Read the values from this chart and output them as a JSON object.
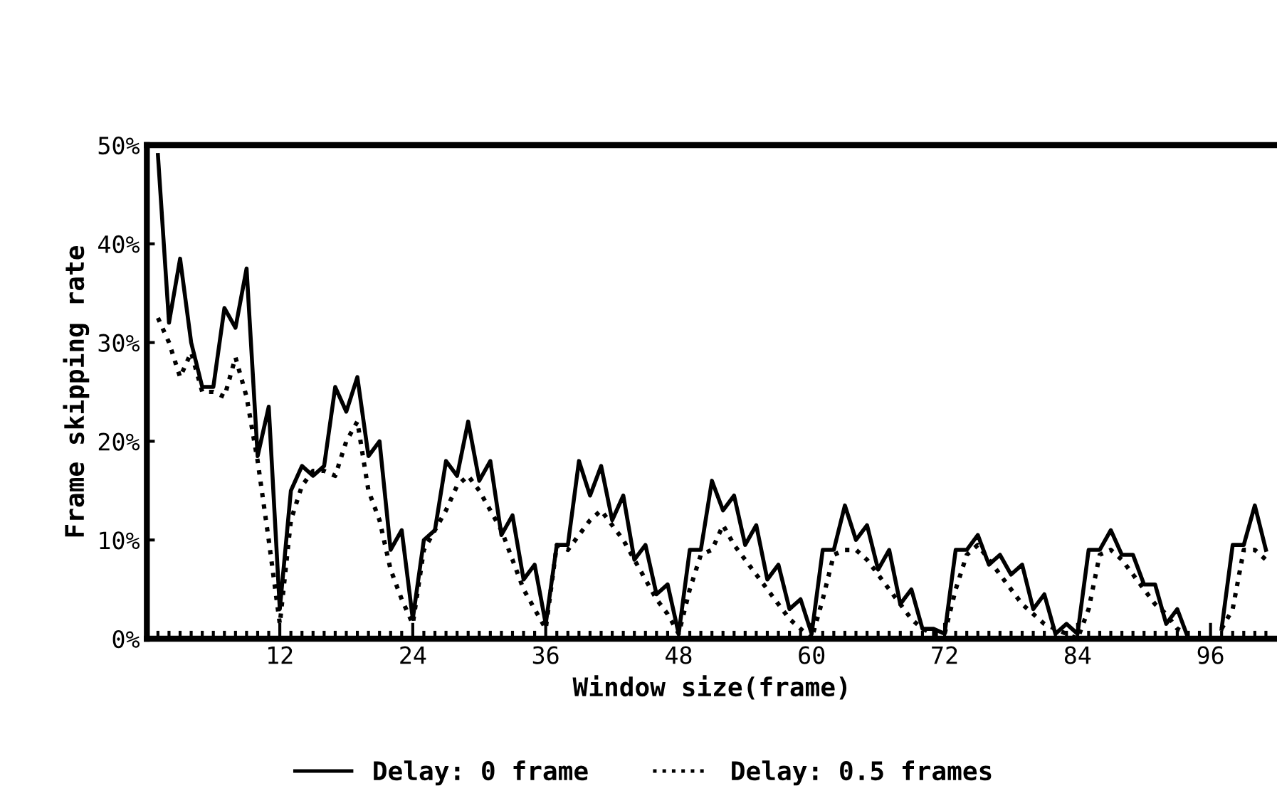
{
  "chart_data": {
    "type": "line",
    "xlabel": "Window size(frame)",
    "ylabel": "Frame skipping rate",
    "x": [
      1,
      2,
      3,
      4,
      5,
      6,
      7,
      8,
      9,
      10,
      11,
      12,
      13,
      14,
      15,
      16,
      17,
      18,
      19,
      20,
      21,
      22,
      23,
      24,
      25,
      26,
      27,
      28,
      29,
      30,
      31,
      32,
      33,
      34,
      35,
      36,
      37,
      38,
      39,
      40,
      41,
      42,
      43,
      44,
      45,
      46,
      47,
      48,
      49,
      50,
      51,
      52,
      53,
      54,
      55,
      56,
      57,
      58,
      59,
      60,
      61,
      62,
      63,
      64,
      65,
      66,
      67,
      68,
      69,
      70,
      71,
      72,
      73,
      74,
      75,
      76,
      77,
      78,
      79,
      80,
      81,
      82,
      83,
      84,
      85,
      86,
      87,
      88,
      89,
      90,
      91,
      92,
      93,
      94,
      95,
      96,
      97,
      98,
      99,
      100,
      101
    ],
    "series": [
      {
        "name": "Delay: 0 frame",
        "color": "#000000",
        "line_style": "solid",
        "values": [
          49,
          32,
          38.5,
          30,
          25.5,
          25.5,
          33.5,
          31.5,
          37.5,
          18.5,
          23.5,
          3,
          15,
          17.5,
          16.5,
          17.5,
          25.5,
          23,
          26.5,
          18.5,
          20,
          9,
          11,
          2,
          10,
          11,
          18,
          16.5,
          22,
          16,
          18,
          10.5,
          12.5,
          6,
          7.5,
          1.5,
          9.5,
          9.5,
          18,
          14.5,
          17.5,
          12,
          14.5,
          8,
          9.5,
          4.5,
          5.5,
          0.5,
          9,
          9,
          16,
          13,
          14.5,
          9.5,
          11.5,
          6,
          7.5,
          3,
          4,
          0.5,
          9,
          9,
          13.5,
          10,
          11.5,
          7,
          9,
          3.5,
          5,
          1,
          1,
          0.5,
          9,
          9,
          10.5,
          7.5,
          8.5,
          6.5,
          7.5,
          3,
          4.5,
          0.5,
          1.5,
          0.5,
          9,
          9,
          11,
          8.5,
          8.5,
          5.5,
          5.5,
          1.5,
          3,
          0,
          null,
          null,
          1,
          9.5,
          9.5,
          13.5,
          9
        ]
      },
      {
        "name": "Delay: 0.5 frames",
        "color": "#000000",
        "line_style": "dotted",
        "values": [
          32.5,
          30,
          26.5,
          29,
          25,
          25,
          24.5,
          28.5,
          24.5,
          18,
          10,
          1.5,
          12,
          15.5,
          17,
          17,
          16.5,
          20,
          22,
          15,
          12,
          7,
          4,
          1.5,
          9,
          11,
          13,
          15.5,
          16.5,
          15,
          13,
          11,
          8,
          5,
          3,
          1,
          9.5,
          9,
          10.5,
          12,
          13,
          11.5,
          10,
          8,
          6,
          4,
          2.5,
          0.5,
          5,
          8.5,
          9,
          11.5,
          9.5,
          8,
          6.5,
          5,
          3.5,
          2,
          1,
          0,
          4,
          8.5,
          9,
          9,
          8,
          6.5,
          5,
          3.5,
          2,
          1,
          0.5,
          0.5,
          5,
          8.5,
          9.5,
          8,
          6.5,
          5,
          3.5,
          2.5,
          1.5,
          1,
          0.5,
          0,
          3,
          8.5,
          9,
          8,
          6.5,
          5,
          3.5,
          2.5,
          1,
          0.5,
          null,
          null,
          1,
          3,
          9,
          9,
          8
        ]
      }
    ],
    "xlim": [
      0,
      102
    ],
    "xticks": [
      {
        "value": 1,
        "label": null
      },
      {
        "value": 2,
        "label": null
      },
      {
        "value": 3,
        "label": null
      },
      {
        "value": 4,
        "label": null
      },
      {
        "value": 5,
        "label": null
      },
      {
        "value": 6,
        "label": null
      },
      {
        "value": 7,
        "label": null
      },
      {
        "value": 8,
        "label": null
      },
      {
        "value": 9,
        "label": null
      },
      {
        "value": 10,
        "label": null
      },
      {
        "value": 11,
        "label": null
      },
      12,
      {
        "value": 13,
        "label": null
      },
      {
        "value": 14,
        "label": null
      },
      {
        "value": 15,
        "label": null
      },
      {
        "value": 16,
        "label": null
      },
      {
        "value": 17,
        "label": null
      },
      {
        "value": 18,
        "label": null
      },
      {
        "value": 19,
        "label": null
      },
      {
        "value": 20,
        "label": null
      },
      {
        "value": 21,
        "label": null
      },
      {
        "value": 22,
        "label": null
      },
      {
        "value": 23,
        "label": null
      },
      24,
      {
        "value": 25,
        "label": null
      },
      {
        "value": 26,
        "label": null
      },
      {
        "value": 27,
        "label": null
      },
      {
        "value": 28,
        "label": null
      },
      {
        "value": 29,
        "label": null
      },
      {
        "value": 30,
        "label": null
      },
      {
        "value": 31,
        "label": null
      },
      {
        "value": 32,
        "label": null
      },
      {
        "value": 33,
        "label": null
      },
      {
        "value": 34,
        "label": null
      },
      {
        "value": 35,
        "label": null
      },
      36,
      {
        "value": 37,
        "label": null
      },
      {
        "value": 38,
        "label": null
      },
      {
        "value": 39,
        "label": null
      },
      {
        "value": 40,
        "label": null
      },
      {
        "value": 41,
        "label": null
      },
      {
        "value": 42,
        "label": null
      },
      {
        "value": 43,
        "label": null
      },
      {
        "value": 44,
        "label": null
      },
      {
        "value": 45,
        "label": null
      },
      {
        "value": 46,
        "label": null
      },
      {
        "value": 47,
        "label": null
      },
      48,
      {
        "value": 49,
        "label": null
      },
      {
        "value": 50,
        "label": null
      },
      {
        "value": 51,
        "label": null
      },
      {
        "value": 52,
        "label": null
      },
      {
        "value": 53,
        "label": null
      },
      {
        "value": 54,
        "label": null
      },
      {
        "value": 55,
        "label": null
      },
      {
        "value": 56,
        "label": null
      },
      {
        "value": 57,
        "label": null
      },
      {
        "value": 58,
        "label": null
      },
      {
        "value": 59,
        "label": null
      },
      60,
      {
        "value": 61,
        "label": null
      },
      {
        "value": 62,
        "label": null
      },
      {
        "value": 63,
        "label": null
      },
      {
        "value": 64,
        "label": null
      },
      {
        "value": 65,
        "label": null
      },
      {
        "value": 66,
        "label": null
      },
      {
        "value": 67,
        "label": null
      },
      {
        "value": 68,
        "label": null
      },
      {
        "value": 69,
        "label": null
      },
      {
        "value": 70,
        "label": null
      },
      {
        "value": 71,
        "label": null
      },
      72,
      {
        "value": 73,
        "label": null
      },
      {
        "value": 74,
        "label": null
      },
      {
        "value": 75,
        "label": null
      },
      {
        "value": 76,
        "label": null
      },
      {
        "value": 77,
        "label": null
      },
      {
        "value": 78,
        "label": null
      },
      {
        "value": 79,
        "label": null
      },
      {
        "value": 80,
        "label": null
      },
      {
        "value": 81,
        "label": null
      },
      {
        "value": 82,
        "label": null
      },
      {
        "value": 83,
        "label": null
      },
      84,
      {
        "value": 85,
        "label": null
      },
      {
        "value": 86,
        "label": null
      },
      {
        "value": 87,
        "label": null
      },
      {
        "value": 88,
        "label": null
      },
      {
        "value": 89,
        "label": null
      },
      {
        "value": 90,
        "label": null
      },
      {
        "value": 91,
        "label": null
      },
      {
        "value": 92,
        "label": null
      },
      {
        "value": 93,
        "label": null
      },
      {
        "value": 94,
        "label": null
      },
      {
        "value": 95,
        "label": null
      },
      96,
      {
        "value": 97,
        "label": null
      },
      {
        "value": 98,
        "label": null
      },
      {
        "value": 99,
        "label": null
      },
      {
        "value": 100,
        "label": null
      },
      {
        "value": 101,
        "label": null
      }
    ],
    "ylim": [
      0,
      50
    ],
    "yticks": [
      {
        "value": 0,
        "label": "0%"
      },
      {
        "value": 10,
        "label": "10%"
      },
      {
        "value": 20,
        "label": "20%"
      },
      {
        "value": 30,
        "label": "30%"
      },
      {
        "value": 40,
        "label": "40%"
      },
      {
        "value": 50,
        "label": "50%"
      }
    ],
    "grid": false,
    "legend": "bottom"
  }
}
